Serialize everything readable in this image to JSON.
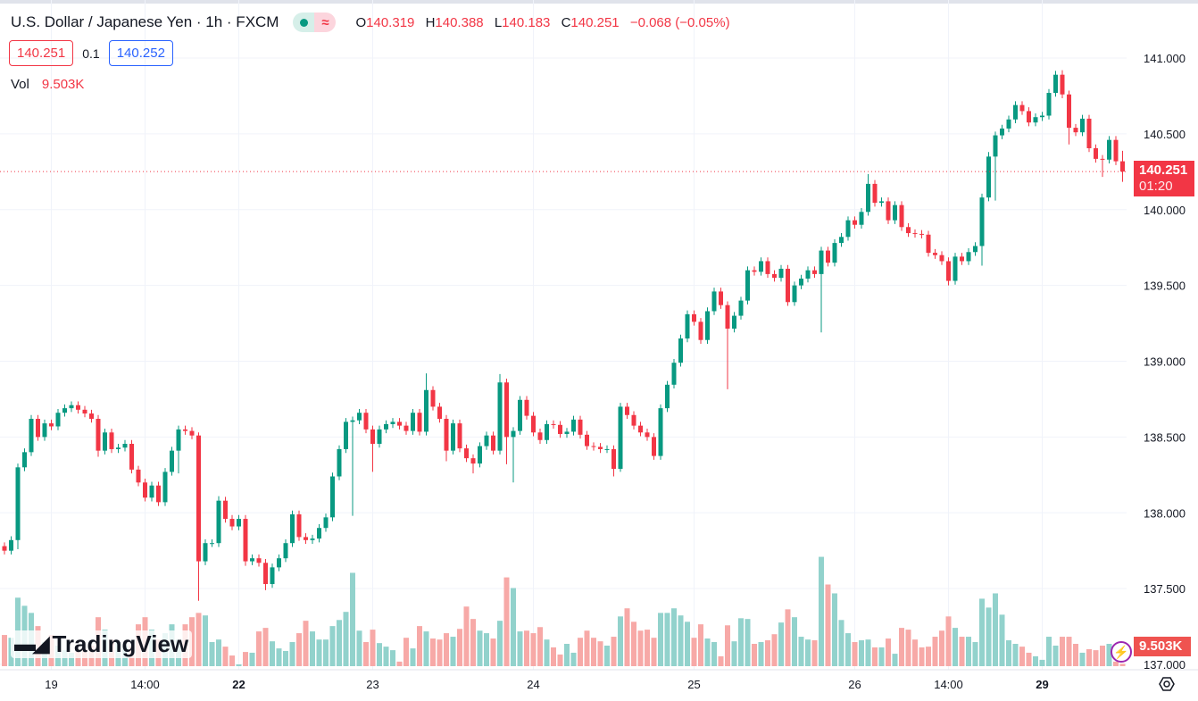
{
  "header": {
    "title": "U.S. Dollar / Japanese Yen · 1h · FXCM",
    "market_status_icon": "market-open-dot",
    "delay_icon": "≈",
    "ohlc": {
      "o_label": "O",
      "o": "140.319",
      "h_label": "H",
      "h": "140.388",
      "l_label": "L",
      "l": "140.183",
      "c_label": "C",
      "c": "140.251",
      "change": "−0.068 (−0.05%)"
    },
    "sell_price": "140.251",
    "spread": "0.1",
    "buy_price": "140.252",
    "vol_label": "Vol",
    "vol_value": "9.503K"
  },
  "price_tag": {
    "price": "140.251",
    "countdown": "01:20"
  },
  "volume_tag": "9.503K",
  "logo_text": "TradingView",
  "colors": {
    "up": "#089981",
    "down": "#f23645",
    "vol_up": "#92d2cc",
    "vol_down": "#f7a9a7",
    "price_line": "#f23645"
  },
  "chart_data": {
    "type": "candlestick",
    "title": "U.S. Dollar / Japanese Yen · 1h · FXCM",
    "ylim": [
      137.0,
      141.0
    ],
    "y_ticks": [
      "141.000",
      "140.500",
      "140.000",
      "139.500",
      "139.000",
      "138.500",
      "138.000",
      "137.500",
      "137.000"
    ],
    "y_tick_values": [
      141.0,
      140.5,
      140.0,
      139.5,
      139.0,
      138.5,
      138.0,
      137.5,
      137.0
    ],
    "x_ticks": [
      {
        "label": "19",
        "index": 7,
        "bold": false
      },
      {
        "label": "14:00",
        "index": 21,
        "bold": false
      },
      {
        "label": "22",
        "index": 35,
        "bold": true
      },
      {
        "label": "23",
        "index": 55,
        "bold": false
      },
      {
        "label": "24",
        "index": 79,
        "bold": false
      },
      {
        "label": "25",
        "index": 103,
        "bold": false
      },
      {
        "label": "26",
        "index": 127,
        "bold": false
      },
      {
        "label": "14:00",
        "index": 141,
        "bold": false
      },
      {
        "label": "29",
        "index": 155,
        "bold": true
      }
    ],
    "last_price": 140.251,
    "grid": true,
    "close": [
      137.75,
      137.82,
      138.3,
      138.4,
      138.62,
      138.5,
      138.59,
      138.57,
      138.66,
      138.69,
      138.71,
      138.68,
      138.655,
      138.62,
      138.41,
      138.53,
      138.42,
      138.43,
      138.455,
      138.285,
      138.2,
      138.1,
      138.18,
      138.07,
      138.27,
      138.41,
      138.55,
      138.54,
      138.51,
      137.68,
      137.8,
      137.8,
      138.08,
      137.96,
      137.91,
      137.96,
      137.68,
      137.7,
      137.67,
      137.53,
      137.64,
      137.7,
      137.8,
      137.99,
      137.84,
      137.82,
      137.83,
      137.9,
      137.97,
      138.24,
      138.42,
      138.6,
      138.61,
      138.66,
      138.55,
      138.455,
      138.55,
      138.585,
      138.6,
      138.575,
      138.54,
      138.66,
      138.535,
      138.81,
      138.7,
      138.62,
      138.41,
      138.59,
      138.425,
      138.36,
      138.325,
      138.44,
      138.51,
      138.41,
      138.86,
      138.5,
      138.54,
      138.745,
      138.64,
      138.53,
      138.48,
      138.585,
      138.58,
      138.52,
      138.535,
      138.615,
      138.515,
      138.44,
      138.435,
      138.42,
      138.42,
      138.29,
      138.7,
      138.645,
      138.575,
      138.53,
      138.5,
      138.375,
      138.69,
      138.845,
      138.99,
      139.15,
      139.31,
      139.26,
      139.14,
      139.33,
      139.46,
      139.37,
      139.215,
      139.3,
      139.4,
      139.6,
      139.59,
      139.66,
      139.575,
      139.55,
      139.61,
      139.39,
      139.5,
      139.545,
      139.6,
      139.575,
      139.73,
      139.65,
      139.78,
      139.82,
      139.93,
      139.9,
      139.985,
      140.17,
      140.045,
      140.055,
      139.93,
      140.03,
      139.885,
      139.845,
      139.84,
      139.835,
      139.715,
      139.7,
      139.66,
      139.53,
      139.69,
      139.66,
      139.72,
      139.76,
      140.08,
      140.35,
      140.49,
      140.535,
      140.595,
      140.69,
      140.65,
      140.575,
      140.61,
      140.62,
      140.77,
      140.89,
      140.76,
      140.54,
      140.51,
      140.6,
      140.405,
      140.335,
      140.33,
      140.46,
      140.319,
      140.251
    ],
    "first_open": 137.78,
    "high_overrides": {
      "29": 138.53,
      "32": 138.11,
      "63": 138.92,
      "74": 138.915,
      "129": 140.235,
      "147": 140.38,
      "158": 140.92,
      "167": 140.388
    },
    "low_overrides": {
      "2": 137.76,
      "14": 138.37,
      "26": 138.26,
      "29": 137.42,
      "36": 137.65,
      "39": 137.49,
      "52": 137.98,
      "55": 138.27,
      "66": 138.34,
      "70": 138.26,
      "75": 138.32,
      "76": 138.2,
      "91": 138.24,
      "92": 138.27,
      "108": 138.815,
      "122": 139.19,
      "141": 139.5,
      "146": 139.63,
      "148": 140.06,
      "159": 140.43,
      "164": 140.216,
      "167": 140.183
    },
    "volume_k": [
      123,
      112,
      270,
      238,
      210,
      158,
      95,
      123,
      81,
      63,
      53,
      60,
      70,
      81,
      193,
      144,
      105,
      95,
      81,
      81,
      165,
      193,
      144,
      105,
      130,
      165,
      105,
      165,
      193,
      210,
      200,
      95,
      105,
      77,
      42,
      7,
      56,
      53,
      137,
      151,
      98,
      70,
      60,
      95,
      130,
      179,
      137,
      105,
      105,
      158,
      182,
      214,
      368,
      140,
      95,
      144,
      91,
      77,
      63,
      18,
      112,
      70,
      158,
      137,
      109,
      105,
      130,
      116,
      147,
      235,
      186,
      140,
      130,
      109,
      179,
      350,
      308,
      137,
      140,
      130,
      154,
      105,
      74,
      46,
      88,
      53,
      112,
      140,
      112,
      98,
      81,
      116,
      196,
      228,
      175,
      140,
      144,
      112,
      210,
      210,
      228,
      200,
      175,
      112,
      165,
      109,
      95,
      39,
      161,
      98,
      189,
      186,
      88,
      95,
      102,
      126,
      172,
      224,
      193,
      116,
      105,
      102,
      431,
      322,
      287,
      182,
      130,
      95,
      102,
      105,
      74,
      74,
      109,
      49,
      151,
      144,
      105,
      74,
      77,
      116,
      140,
      196,
      151,
      116,
      116,
      95,
      266,
      231,
      287,
      203,
      102,
      88,
      77,
      53,
      39,
      25,
      116,
      81,
      116,
      116,
      88,
      53,
      67,
      63,
      81,
      88,
      18,
      9.503
    ]
  }
}
